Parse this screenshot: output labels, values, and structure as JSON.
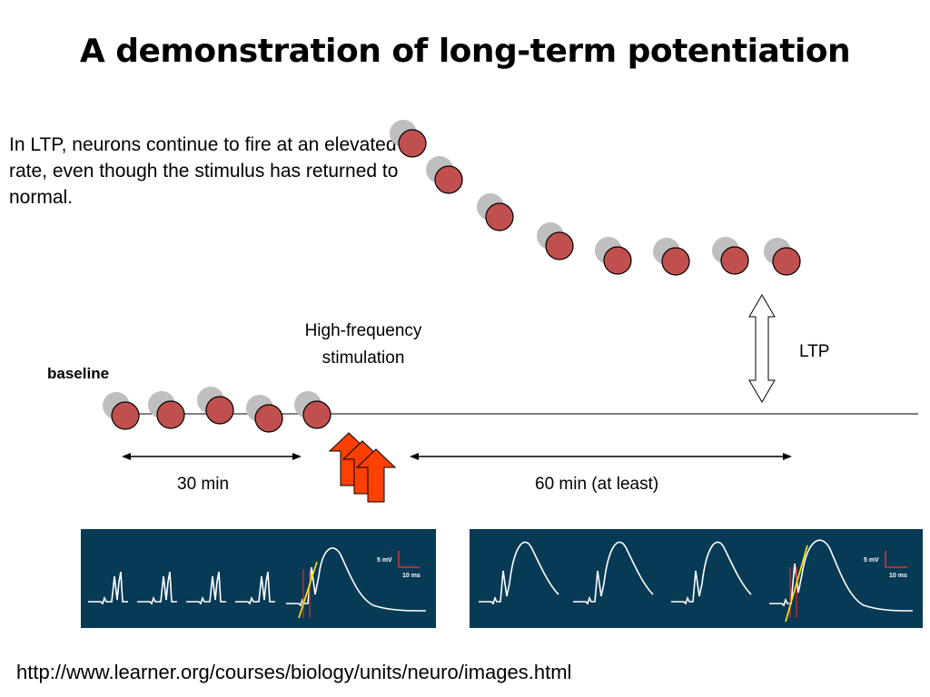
{
  "title": "A demonstration of long-term potentiation",
  "explanation": "In LTP, neurons continue to fire at an elevated rate, even though the stimulus has returned to normal.",
  "labels": {
    "stimulation": "High-frequency stimulation",
    "ltp": "LTP",
    "baseline": "baseline",
    "duration_before": "30 min",
    "duration_after": "60 min (at least)"
  },
  "trace_panels": [
    {
      "scale_voltage": "5 mV",
      "scale_time": "10 ms"
    },
    {
      "scale_voltage": "5 mV",
      "scale_time": "10 ms"
    }
  ],
  "source_url": "http://www.learner.org/courses/biology/units/neuro/images.html",
  "colors": {
    "dot_fill": "#c0504d",
    "dot_shadow": "#bfbfbf",
    "stim_arrow": "#ff4000",
    "panel_bg": "#073a55",
    "trace": "#ffffff",
    "scale_bar": "#e03030",
    "slope_line": "#ffee00"
  },
  "icons": [
    "up-arrow-icon",
    "double-arrow-icon",
    "scale-bar-icon"
  ]
}
